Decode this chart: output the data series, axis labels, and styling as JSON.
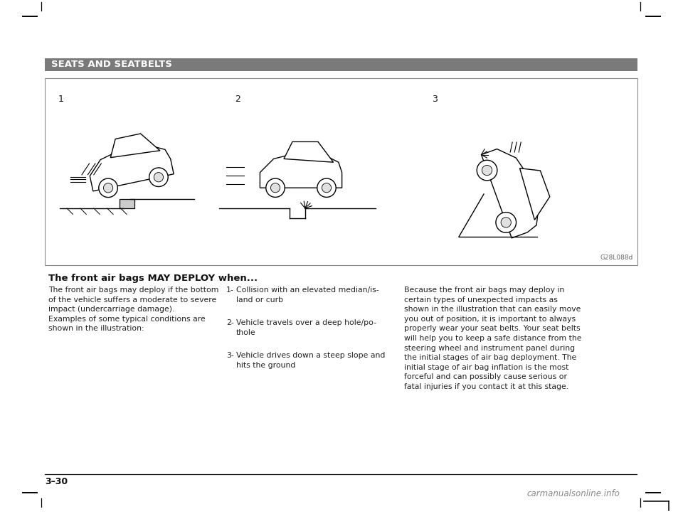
{
  "page_bg": "#ffffff",
  "header_bg": "#7a7a7a",
  "header_text": "SEATS AND SEATBELTS",
  "header_text_color": "#ffffff",
  "header_fontsize": 9.5,
  "illustration_label": "G28L088d",
  "section_numbers": [
    "1",
    "2",
    "3"
  ],
  "bold_heading": "The front air bags MAY DEPLOY when...",
  "col1_text": "The front air bags may deploy if the bottom\nof the vehicle suffers a moderate to severe\nimpact (undercarriage damage).\nExamples of some typical conditions are\nshown in the illustration:",
  "col2_items": [
    [
      "1-",
      "Collision with an elevated median/is-\nland or curb"
    ],
    [
      "2-",
      "Vehicle travels over a deep hole/po-\nthole"
    ],
    [
      "3-",
      "Vehicle drives down a steep slope and\nhits the ground"
    ]
  ],
  "col3_text": "Because the front air bags may deploy in\ncertain types of unexpected impacts as\nshown in the illustration that can easily move\nyou out of position, it is important to always\nproperly wear your seat belts. Your seat belts\nwill help you to keep a safe distance from the\nsteering wheel and instrument panel during\nthe initial stages of air bag deployment. The\ninitial stage of air bag inflation is the most\nforceful and can possibly cause serious or\nfatal injuries if you contact it at this stage.",
  "page_number": "3–30",
  "watermark": "carmanualsonline.info",
  "mark_color": "#000000",
  "box_border_color": "#888888",
  "text_color": "#222222"
}
